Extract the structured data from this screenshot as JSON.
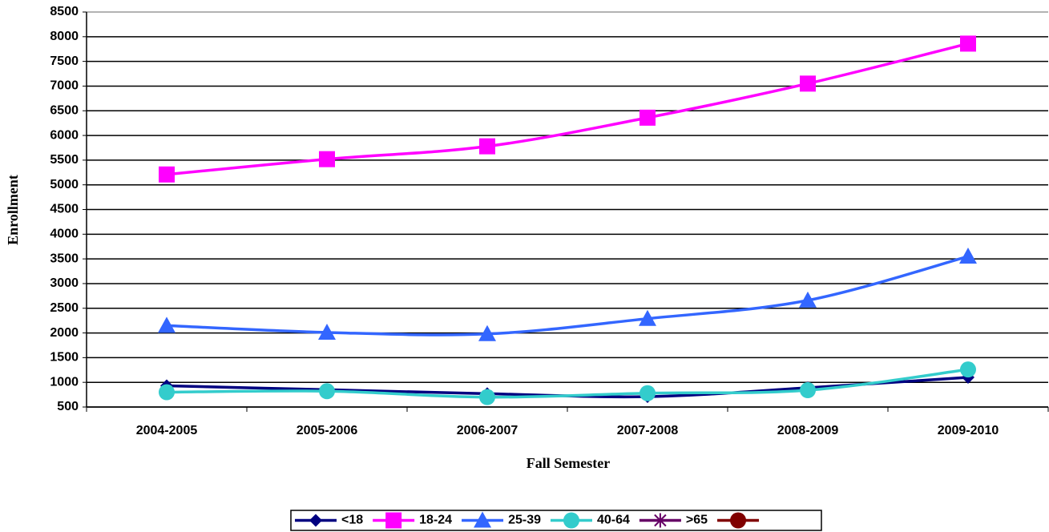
{
  "chart_data": {
    "type": "line",
    "x_label": "Fall Semester",
    "y_label": "Enrollment",
    "categories": [
      "2004-2005",
      "2005-2006",
      "2006-2007",
      "2007-2008",
      "2008-2009",
      "2009-2010"
    ],
    "series": [
      {
        "name": "<18",
        "color": "#000080",
        "marker": "diamond",
        "values": [
          930,
          850,
          770,
          710,
          890,
          1100
        ]
      },
      {
        "name": "18-24",
        "color": "#ff00ff",
        "marker": "square",
        "values": [
          5210,
          5520,
          5780,
          6360,
          7050,
          7860
        ]
      },
      {
        "name": "25-39",
        "color": "#3366ff",
        "marker": "triangle",
        "values": [
          2150,
          2010,
          1980,
          2290,
          2660,
          3550
        ]
      },
      {
        "name": "40-64",
        "color": "#33cccc",
        "marker": "circle",
        "values": [
          800,
          820,
          700,
          780,
          840,
          1260
        ]
      },
      {
        "name": ">65",
        "color": "#660066",
        "marker": "star",
        "values": [
          null,
          null,
          null,
          null,
          null,
          null
        ]
      },
      {
        "color": "#800000",
        "marker": "circle",
        "values": [
          null,
          null,
          null,
          null,
          null,
          null
        ]
      }
    ],
    "ylim": [
      500,
      8500
    ],
    "yticks": [
      500,
      1000,
      1500,
      2000,
      2500,
      3000,
      3500,
      4000,
      4500,
      5000,
      5500,
      6000,
      6500,
      7000,
      7500,
      8000,
      8500
    ],
    "grid": true,
    "legend": "bottom"
  }
}
